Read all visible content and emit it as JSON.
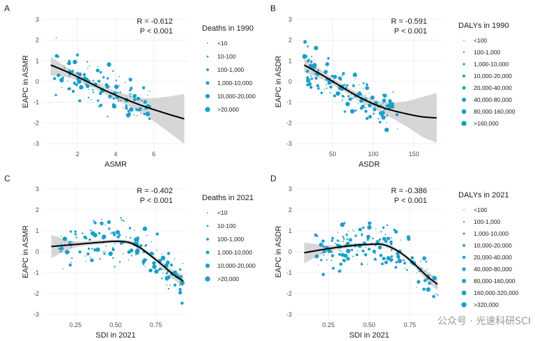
{
  "chart_data": [
    {
      "id": "A",
      "type": "scatter",
      "panel_label": "A",
      "xlabel": "ASMR",
      "ylabel": "EAPC in ASMR",
      "xlim": [
        0.2,
        7.8
      ],
      "ylim": [
        -3.2,
        3.2
      ],
      "xticks": [
        2,
        4,
        6
      ],
      "yticks": [
        -3,
        -2,
        -1,
        0,
        1,
        2,
        3
      ],
      "stats": {
        "r": "R = -0.612",
        "p": "P < 0.001"
      },
      "legend": {
        "title": "Deaths in 1990",
        "position": "right",
        "items": [
          "<10",
          "10-100",
          "100-1,000",
          "1,000-10,000",
          "10,000-20,000",
          ">20,000"
        ]
      },
      "trend": {
        "x": [
          0.6,
          1.5,
          2.5,
          3.5,
          4.5,
          5.5,
          6.5,
          7.6
        ],
        "y": [
          0.8,
          0.45,
          0.0,
          -0.45,
          -0.85,
          -1.2,
          -1.5,
          -1.8
        ]
      },
      "ci_upper": [
        1.2,
        0.65,
        0.15,
        -0.28,
        -0.6,
        -0.8,
        -0.75,
        -0.6
      ],
      "ci_lower": [
        0.3,
        0.2,
        -0.15,
        -0.62,
        -1.1,
        -1.6,
        -2.25,
        -3.0
      ],
      "point_seed": 11,
      "points": {
        "xmin": 0.5,
        "xmax": 5.8,
        "n": 160
      }
    },
    {
      "id": "B",
      "type": "scatter",
      "panel_label": "B",
      "xlabel": "ASDR",
      "ylabel": "EAPC in ASDR",
      "xlim": [
        5,
        185
      ],
      "ylim": [
        -3.2,
        3.2
      ],
      "xticks": [
        50,
        100,
        150
      ],
      "yticks": [
        -3,
        -2,
        -1,
        0,
        1,
        2,
        3
      ],
      "stats": {
        "r": "R = -0.591",
        "p": "P < 0.001"
      },
      "legend": {
        "title": "DALYs in 1990",
        "position": "right",
        "items": [
          "<100",
          "100-1,000",
          "1,000-10,000",
          "10,000-20,000",
          "20,000-40,000",
          "40,000-80,000",
          "80,000-160,000",
          ">160,000"
        ]
      },
      "trend": {
        "x": [
          15,
          40,
          65,
          90,
          115,
          140,
          160,
          178
        ],
        "y": [
          0.8,
          0.25,
          -0.35,
          -0.9,
          -1.3,
          -1.55,
          -1.7,
          -1.75
        ]
      },
      "ci_upper": [
        1.1,
        0.45,
        -0.2,
        -0.7,
        -1.0,
        -0.95,
        -0.75,
        -0.55
      ],
      "ci_lower": [
        0.45,
        0.05,
        -0.5,
        -1.1,
        -1.6,
        -2.15,
        -2.65,
        -2.95
      ],
      "point_seed": 23,
      "points": {
        "xmin": 15,
        "xmax": 130,
        "n": 160
      }
    },
    {
      "id": "C",
      "type": "scatter",
      "panel_label": "C",
      "xlabel": "SDI in 2021",
      "ylabel": "EAPC in ASMR",
      "xlim": [
        0.05,
        0.95
      ],
      "ylim": [
        -3.2,
        3.2
      ],
      "xticks": [
        0.25,
        0.5,
        0.75
      ],
      "xtick_labels": [
        "0.25",
        "0.50",
        "0.75"
      ],
      "yticks": [
        -3,
        -2,
        -1,
        0,
        1,
        2,
        3
      ],
      "stats": {
        "r": "R = -0.402",
        "p": "P < 0.001"
      },
      "legend": {
        "title": "Deaths in 2021",
        "position": "right",
        "items": [
          "<10",
          "10-100",
          "100-1,000",
          "1,000-10,000",
          "10,000-20,000",
          ">20,000"
        ]
      },
      "trend": {
        "x": [
          0.1,
          0.25,
          0.4,
          0.5,
          0.58,
          0.65,
          0.72,
          0.8,
          0.86,
          0.92
        ],
        "y": [
          0.25,
          0.35,
          0.45,
          0.5,
          0.45,
          0.2,
          -0.2,
          -0.7,
          -1.1,
          -1.4
        ]
      },
      "ci_upper": [
        0.8,
        0.5,
        0.55,
        0.58,
        0.55,
        0.3,
        -0.1,
        -0.55,
        -0.9,
        -1.1
      ],
      "ci_lower": [
        -0.3,
        0.2,
        0.35,
        0.42,
        0.35,
        0.1,
        -0.3,
        -0.85,
        -1.3,
        -1.7
      ],
      "point_seed": 37,
      "points": {
        "xmin": 0.15,
        "xmax": 0.92,
        "n": 180
      }
    },
    {
      "id": "D",
      "type": "scatter",
      "panel_label": "D",
      "xlabel": "SDI in 2021",
      "ylabel": "EAPC in ASDR",
      "xlim": [
        0.05,
        0.95
      ],
      "ylim": [
        -3.2,
        3.2
      ],
      "xticks": [
        0.25,
        0.5,
        0.75
      ],
      "xtick_labels": [
        "0.25",
        "0.50",
        "0.75"
      ],
      "yticks": [
        -3,
        -2,
        -1,
        0,
        1,
        2,
        3
      ],
      "stats": {
        "r": "R = -0.386",
        "p": "P < 0.001"
      },
      "legend": {
        "title": "DALYs in 2021",
        "position": "right",
        "items": [
          "<100",
          "100-1,000",
          "1,000-10,000",
          "10,000-20,000",
          "20,000-40,000",
          "40,000-80,000",
          "80,000-160,000",
          "160,000-320,000",
          ">320,000"
        ]
      },
      "trend": {
        "x": [
          0.1,
          0.25,
          0.4,
          0.5,
          0.58,
          0.65,
          0.72,
          0.8,
          0.86,
          0.92
        ],
        "y": [
          -0.05,
          0.15,
          0.3,
          0.35,
          0.35,
          0.15,
          -0.2,
          -0.75,
          -1.2,
          -1.55
        ]
      },
      "ci_upper": [
        0.45,
        0.3,
        0.4,
        0.42,
        0.45,
        0.25,
        -0.1,
        -0.6,
        -0.95,
        -1.25
      ],
      "ci_lower": [
        -0.55,
        0.0,
        0.2,
        0.28,
        0.25,
        0.05,
        -0.3,
        -0.9,
        -1.45,
        -1.85
      ],
      "point_seed": 53,
      "points": {
        "xmin": 0.15,
        "xmax": 0.92,
        "n": 180
      }
    }
  ],
  "style": {
    "point_color": "#1a9fc9",
    "line_color": "#000000",
    "ci_color": "#cfcfcf",
    "grid_color": "#ececec"
  },
  "watermark": "公众号 · 光速科研SCI"
}
